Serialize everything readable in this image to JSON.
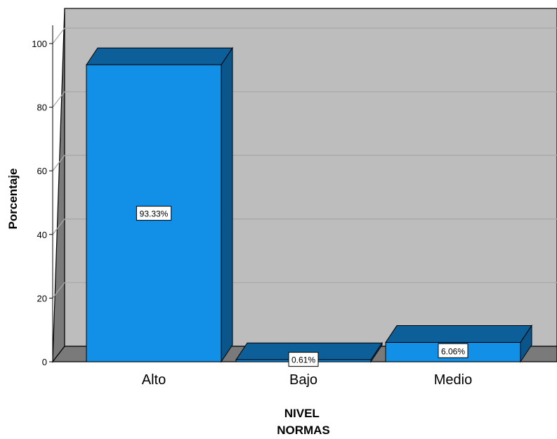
{
  "chart_data": {
    "type": "bar",
    "title": "",
    "xlabel": [
      "NIVEL",
      "NORMAS"
    ],
    "ylabel": "Porcentaje",
    "categories": [
      "Alto",
      "Bajo",
      "Medio"
    ],
    "values": [
      93.33,
      0.61,
      6.06
    ],
    "data_labels": [
      "93.33%",
      "0.61%",
      "6.06%"
    ],
    "ylim": [
      0,
      100
    ],
    "yticks": [
      "0",
      "20",
      "40",
      "60",
      "80",
      "100"
    ],
    "grid": true,
    "legend": "none",
    "style": "3d",
    "colors": {
      "bar_front": "#1290e8",
      "bar_top": "#0c5f98",
      "bar_side": "#0a558a",
      "wall": "#bdbdbd",
      "floor": "#7a7a7a",
      "gridline": "#a8a8a8"
    }
  }
}
